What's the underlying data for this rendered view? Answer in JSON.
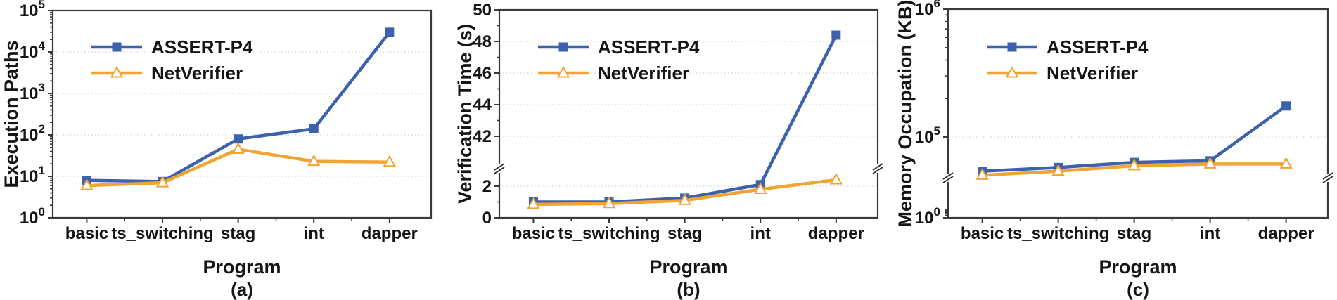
{
  "figure": {
    "colors": {
      "assert_p4": "#3c62ad",
      "netverifier": "#f0a433",
      "grid": "#d2d2d2",
      "axis": "#3a3a3a",
      "marker_fill_open": "#ffffff"
    }
  },
  "chart_data": [
    {
      "id": "a",
      "type": "line",
      "caption": "(a)",
      "xlabel": "Program",
      "ylabel": "Execution Paths",
      "categories": [
        "basic",
        "ts_switching",
        "stag",
        "int",
        "dapper"
      ],
      "legend": [
        "ASSERT-P4",
        "NetVerifier"
      ],
      "legend_position": "top-left",
      "grid": "horizontal-dotted",
      "y_axis": {
        "scale": "log",
        "range": [
          1,
          100000
        ],
        "ticks": [
          {
            "base": "10",
            "exp": "0",
            "value": 1
          },
          {
            "base": "10",
            "exp": "1",
            "value": 10
          },
          {
            "base": "10",
            "exp": "2",
            "value": 100
          },
          {
            "base": "10",
            "exp": "3",
            "value": 1000
          },
          {
            "base": "10",
            "exp": "4",
            "value": 10000
          },
          {
            "base": "10",
            "exp": "5",
            "value": 100000
          }
        ],
        "grid_values": [
          10,
          100,
          1000,
          10000
        ],
        "minor_values": []
      },
      "series": [
        {
          "name": "ASSERT-P4",
          "marker": "square",
          "color_key": "assert_p4",
          "values": [
            8,
            7.5,
            80,
            140,
            30000
          ]
        },
        {
          "name": "NetVerifier",
          "marker": "triangle",
          "color_key": "netverifier",
          "values": [
            6,
            7,
            45,
            23,
            22
          ]
        }
      ]
    },
    {
      "id": "b",
      "type": "line",
      "caption": "(b)",
      "xlabel": "Program",
      "ylabel": "Verification Time (s)",
      "categories": [
        "basic",
        "ts_switching",
        "stag",
        "int",
        "dapper"
      ],
      "legend": [
        "ASSERT-P4",
        "NetVerifier"
      ],
      "legend_position": "top-left",
      "grid": "horizontal-dotted",
      "y_axis": {
        "scale": "broken-linear",
        "range_lower": [
          0,
          2
        ],
        "range_upper": [
          42,
          50
        ],
        "ticks": [
          {
            "label": "0",
            "value": 0
          },
          {
            "label": "2",
            "value": 2
          },
          {
            "label": "42",
            "value": 42
          },
          {
            "label": "44",
            "value": 44
          },
          {
            "label": "46",
            "value": 46
          },
          {
            "label": "48",
            "value": 48
          },
          {
            "label": "50",
            "value": 50
          }
        ],
        "grid_values": [
          2,
          42,
          44,
          46,
          48
        ],
        "minor_values": [
          1,
          43,
          45,
          47,
          49
        ]
      },
      "series": [
        {
          "name": "ASSERT-P4",
          "marker": "square",
          "color_key": "assert_p4",
          "values": [
            1.0,
            1.0,
            1.25,
            2.1,
            48.4
          ]
        },
        {
          "name": "NetVerifier",
          "marker": "triangle",
          "color_key": "netverifier",
          "values": [
            0.85,
            0.9,
            1.1,
            1.8,
            2.4
          ]
        }
      ]
    },
    {
      "id": "c",
      "type": "line",
      "caption": "(c)",
      "xlabel": "Program",
      "ylabel": "Memory Occupation (KB)",
      "categories": [
        "basic",
        "ts_switching",
        "stag",
        "int",
        "dapper"
      ],
      "legend": [
        "ASSERT-P4",
        "NetVerifier"
      ],
      "legend_position": "top-left",
      "grid": "horizontal-dotted",
      "y_axis": {
        "scale": "broken-log",
        "range": [
          1,
          1000000
        ],
        "ticks": [
          {
            "base": "10",
            "exp": "0",
            "value": 1
          },
          {
            "base": "10",
            "exp": "5",
            "value": 100000
          },
          {
            "base": "10",
            "exp": "6",
            "value": 1000000
          }
        ],
        "grid_values": [
          100000
        ],
        "minor_values": []
      },
      "series": [
        {
          "name": "ASSERT-P4",
          "marker": "square",
          "color_key": "assert_p4",
          "values": [
            48000,
            52000,
            58000,
            60000,
            175000
          ]
        },
        {
          "name": "NetVerifier",
          "marker": "triangle",
          "color_key": "netverifier",
          "values": [
            44000,
            48000,
            54000,
            56000,
            56000
          ]
        }
      ]
    }
  ]
}
